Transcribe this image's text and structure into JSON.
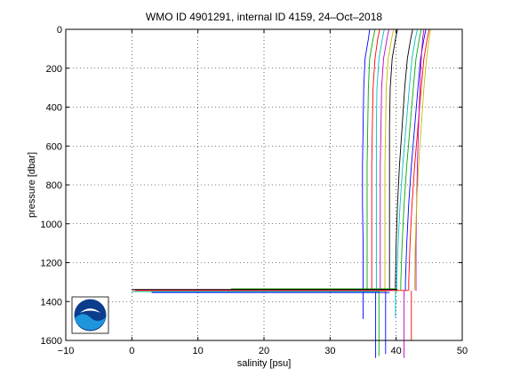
{
  "chart_data": {
    "type": "line",
    "title": "WMO ID 4901291, internal ID 4159, 24–Oct–2018",
    "xlabel": "salinity [psu]",
    "ylabel": "pressure [dbar]",
    "xlim": [
      -10,
      50
    ],
    "ylim": [
      0,
      1600
    ],
    "y_reversed": true,
    "grid": true,
    "legend": "none",
    "x_ticks": [
      "−10",
      "0",
      "10",
      "20",
      "30",
      "40",
      "50"
    ],
    "y_ticks": [
      "0",
      "200",
      "400",
      "600",
      "800",
      "1000",
      "1200",
      "1400",
      "1600"
    ],
    "series": [
      {
        "color": "#0000ff",
        "x": [
          36.0,
          35.8,
          35.3,
          35.1,
          35.0,
          34.9,
          34.9,
          35.0,
          35.0,
          35.0
        ],
        "y": [
          0,
          50,
          150,
          300,
          500,
          700,
          900,
          1100,
          1300,
          1340
        ]
      },
      {
        "color": "#00aa00",
        "x": [
          36.8,
          36.5,
          36.0,
          35.8,
          35.7,
          35.6,
          35.6,
          35.6,
          35.6,
          35.6
        ],
        "y": [
          0,
          50,
          150,
          300,
          500,
          700,
          900,
          1100,
          1300,
          1345
        ]
      },
      {
        "color": "#ff0000",
        "x": [
          37.5,
          37.2,
          36.8,
          36.5,
          36.4,
          36.3,
          36.3,
          36.3,
          36.3,
          36.3
        ],
        "y": [
          0,
          50,
          150,
          300,
          500,
          700,
          900,
          1100,
          1300,
          1340
        ]
      },
      {
        "color": "#00bfbf",
        "x": [
          38.2,
          37.9,
          37.4,
          37.1,
          37.0,
          37.0,
          37.0,
          37.0,
          37.0,
          37.0
        ],
        "y": [
          0,
          50,
          150,
          300,
          500,
          700,
          900,
          1100,
          1300,
          1350
        ]
      },
      {
        "color": "#bf00bf",
        "x": [
          38.9,
          38.6,
          38.1,
          37.8,
          37.7,
          37.6,
          37.6,
          37.6,
          37.6,
          37.6
        ],
        "y": [
          0,
          50,
          150,
          300,
          500,
          700,
          900,
          1100,
          1300,
          1345
        ]
      },
      {
        "color": "#bfbf00",
        "x": [
          39.6,
          39.3,
          38.8,
          38.5,
          38.4,
          38.3,
          38.3,
          38.3,
          38.3,
          38.3
        ],
        "y": [
          0,
          50,
          150,
          300,
          500,
          700,
          900,
          1100,
          1300,
          1340
        ]
      },
      {
        "color": "#000000",
        "x": [
          40.2,
          39.9,
          39.4,
          39.1,
          39.0,
          39.0,
          39.0,
          39.0,
          39.0,
          39.0
        ],
        "y": [
          0,
          50,
          150,
          300,
          500,
          700,
          900,
          1100,
          1300,
          1345
        ]
      },
      {
        "color": "#0000ff",
        "x": [
          44.5,
          44.2,
          43.7,
          43.3,
          42.8,
          42.3,
          41.9,
          41.6,
          41.4,
          41.4
        ],
        "y": [
          0,
          50,
          150,
          300,
          500,
          700,
          900,
          1100,
          1300,
          1345
        ]
      },
      {
        "color": "#00aa00",
        "x": [
          43.8,
          43.5,
          43.0,
          42.6,
          42.1,
          41.6,
          41.2,
          40.9,
          40.7,
          40.7
        ],
        "y": [
          0,
          50,
          150,
          300,
          500,
          700,
          900,
          1100,
          1300,
          1340
        ]
      },
      {
        "color": "#ff0000",
        "x": [
          45.0,
          44.7,
          44.2,
          43.8,
          43.3,
          42.8,
          42.4,
          42.1,
          41.9,
          41.9
        ],
        "y": [
          0,
          50,
          150,
          300,
          500,
          700,
          900,
          1100,
          1300,
          1345
        ]
      },
      {
        "color": "#00bfbf",
        "x": [
          43.2,
          42.9,
          42.4,
          42.0,
          41.5,
          41.0,
          40.6,
          40.3,
          40.1,
          40.1
        ],
        "y": [
          0,
          50,
          150,
          300,
          500,
          700,
          900,
          1100,
          1300,
          1350
        ]
      },
      {
        "color": "#bf00bf",
        "x": [
          44.2,
          44.0,
          43.8,
          43.6,
          43.4,
          43.2,
          43.1,
          43.0,
          43.0,
          43.0
        ],
        "y": [
          0,
          50,
          150,
          300,
          500,
          700,
          900,
          1100,
          1300,
          1345
        ]
      },
      {
        "color": "#bfbf00",
        "x": [
          45.2,
          45.0,
          44.6,
          44.2,
          43.8,
          43.4,
          43.1,
          42.9,
          42.8,
          42.8
        ],
        "y": [
          0,
          50,
          150,
          300,
          500,
          700,
          900,
          1100,
          1300,
          1340
        ]
      },
      {
        "color": "#000000",
        "x": [
          42.5,
          42.2,
          41.7,
          41.3,
          40.9,
          40.5,
          40.2,
          40.0,
          39.9,
          39.9
        ],
        "y": [
          0,
          50,
          150,
          300,
          500,
          700,
          900,
          1100,
          1300,
          1345
        ]
      },
      {
        "color": "#0000ff",
        "x": [
          35.0,
          35.0
        ],
        "y": [
          1340,
          1490
        ]
      },
      {
        "color": "#0000ff",
        "x": [
          36.9,
          36.9
        ],
        "y": [
          1350,
          1690
        ]
      },
      {
        "color": "#00aa00",
        "x": [
          37.4,
          37.4
        ],
        "y": [
          1345,
          1680
        ]
      },
      {
        "color": "#0000ff",
        "x": [
          38.4,
          38.4
        ],
        "y": [
          1345,
          1670
        ]
      },
      {
        "color": "#bf00bf",
        "x": [
          41.2,
          41.2
        ],
        "y": [
          1345,
          1690
        ]
      },
      {
        "color": "#ff0000",
        "x": [
          42.3,
          42.3
        ],
        "y": [
          1345,
          1600
        ]
      },
      {
        "color": "#00bfbf",
        "x": [
          39.9,
          39.9
        ],
        "y": [
          1345,
          1480
        ]
      },
      {
        "color": "#bf00bf",
        "x": [
          39.6,
          0.0
        ],
        "y": [
          1340,
          1340
        ]
      },
      {
        "color": "#00aa00",
        "x": [
          40.0,
          15.0
        ],
        "y": [
          1335,
          1335
        ]
      },
      {
        "color": "#0000ff",
        "x": [
          39.0,
          3.0
        ],
        "y": [
          1353,
          1353
        ]
      },
      {
        "color": "#ff0000",
        "x": [
          41.8,
          0.5
        ],
        "y": [
          1343,
          1343
        ]
      },
      {
        "color": "#bfbf00",
        "x": [
          38.5,
          0.0
        ],
        "y": [
          1347,
          1347
        ]
      },
      {
        "color": "#000000",
        "x": [
          40.2,
          0.0
        ],
        "y": [
          1338,
          1338
        ]
      },
      {
        "color": "#00bfbf",
        "x": [
          37.5,
          0.0
        ],
        "y": [
          1349,
          1349
        ]
      }
    ]
  },
  "logo": {
    "text": "NOAA",
    "colors": [
      "#0c3c8c",
      "#1e96dc",
      "#ffffff"
    ]
  }
}
